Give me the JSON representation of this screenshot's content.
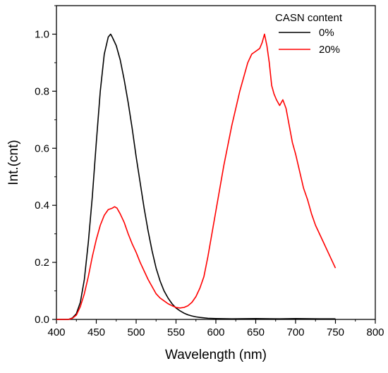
{
  "chart_data": {
    "type": "line",
    "xlabel": "Wavelength (nm)",
    "ylabel": "Int.(cnt)",
    "xlim": [
      400,
      800
    ],
    "ylim": [
      0.0,
      1.1
    ],
    "xticks": [
      400,
      450,
      500,
      550,
      600,
      650,
      700,
      750,
      800
    ],
    "xtick_labels": [
      "400",
      "450",
      "500",
      "550",
      "600",
      "650",
      "700",
      "750",
      "800"
    ],
    "yticks": [
      0.0,
      0.2,
      0.4,
      0.6,
      0.8,
      1.0
    ],
    "ytick_labels": [
      "0.0",
      "0.2",
      "0.4",
      "0.6",
      "0.8",
      "1.0"
    ],
    "grid": false,
    "legend": {
      "title": "CASN content",
      "position": "top-right"
    },
    "series": [
      {
        "name": "0%",
        "color": "#000000",
        "x": [
          400,
          415,
          420,
          425,
          430,
          435,
          440,
          445,
          450,
          455,
          460,
          465,
          468,
          470,
          475,
          480,
          485,
          490,
          495,
          500,
          505,
          510,
          515,
          520,
          525,
          530,
          535,
          540,
          545,
          550,
          555,
          560,
          565,
          570,
          575,
          580,
          590,
          600,
          620,
          650,
          680,
          700,
          730,
          750
        ],
        "y": [
          0.0,
          0.0,
          0.005,
          0.02,
          0.06,
          0.14,
          0.27,
          0.43,
          0.62,
          0.8,
          0.93,
          0.99,
          1.0,
          0.99,
          0.96,
          0.91,
          0.84,
          0.76,
          0.67,
          0.57,
          0.48,
          0.39,
          0.31,
          0.24,
          0.18,
          0.135,
          0.1,
          0.075,
          0.055,
          0.04,
          0.03,
          0.022,
          0.016,
          0.012,
          0.009,
          0.007,
          0.004,
          0.003,
          0.002,
          0.003,
          0.002,
          0.003,
          0.002,
          0.002
        ]
      },
      {
        "name": "20%",
        "color": "#ff0000",
        "x": [
          400,
          415,
          420,
          425,
          430,
          435,
          440,
          445,
          450,
          455,
          460,
          465,
          470,
          473,
          476,
          480,
          485,
          490,
          495,
          500,
          505,
          510,
          515,
          520,
          525,
          530,
          535,
          540,
          545,
          550,
          555,
          560,
          565,
          570,
          575,
          580,
          585,
          590,
          595,
          600,
          605,
          610,
          615,
          620,
          625,
          630,
          635,
          640,
          645,
          650,
          655,
          658,
          661,
          664,
          667,
          670,
          673,
          676,
          680,
          684,
          688,
          692,
          696,
          700,
          705,
          710,
          715,
          720,
          725,
          730,
          735,
          740,
          745,
          750
        ],
        "y": [
          0.0,
          0.0,
          0.004,
          0.015,
          0.045,
          0.09,
          0.15,
          0.22,
          0.28,
          0.33,
          0.365,
          0.385,
          0.39,
          0.395,
          0.39,
          0.37,
          0.34,
          0.3,
          0.265,
          0.235,
          0.2,
          0.17,
          0.14,
          0.115,
          0.09,
          0.075,
          0.065,
          0.055,
          0.048,
          0.042,
          0.04,
          0.042,
          0.048,
          0.06,
          0.08,
          0.11,
          0.15,
          0.22,
          0.3,
          0.38,
          0.46,
          0.54,
          0.61,
          0.68,
          0.74,
          0.8,
          0.85,
          0.9,
          0.93,
          0.94,
          0.95,
          0.97,
          1.0,
          0.96,
          0.9,
          0.82,
          0.79,
          0.77,
          0.75,
          0.77,
          0.74,
          0.68,
          0.62,
          0.58,
          0.52,
          0.46,
          0.42,
          0.37,
          0.33,
          0.3,
          0.27,
          0.24,
          0.21,
          0.18
        ]
      }
    ]
  }
}
